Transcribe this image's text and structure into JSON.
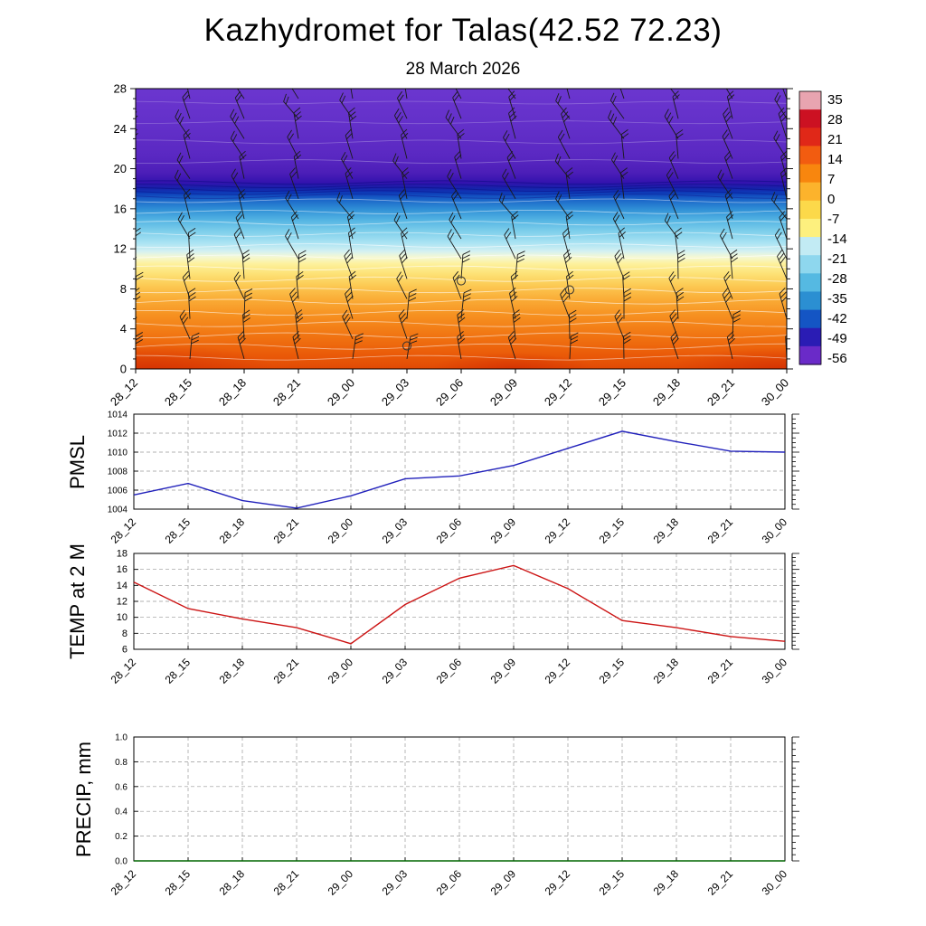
{
  "page": {
    "title": "Kazhydromet for Talas(42.52 72.23)",
    "subtitle": "28 March 2026"
  },
  "times": [
    "28_12",
    "28_15",
    "28_18",
    "28_21",
    "29_00",
    "29_03",
    "29_06",
    "29_09",
    "29_12",
    "29_15",
    "29_18",
    "29_21",
    "30_00"
  ],
  "chart_data": [
    {
      "id": "temperature_height_section",
      "type": "heatmap",
      "description": "Vertical temperature cross-section with wind barbs",
      "x_categories": [
        "28_12",
        "28_15",
        "28_18",
        "28_21",
        "29_00",
        "29_03",
        "29_06",
        "29_09",
        "29_12",
        "29_15",
        "29_18",
        "29_21",
        "30_00"
      ],
      "ylim": [
        0,
        28
      ],
      "y_ticks": [
        0,
        4,
        8,
        12,
        16,
        20,
        24,
        28
      ],
      "colorbar": {
        "labels": [
          35,
          28,
          21,
          14,
          7,
          0,
          -7,
          -14,
          -21,
          -28,
          -35,
          -42,
          -49,
          -56
        ],
        "colors": [
          "#e8a4b0",
          "#cc1122",
          "#e02818",
          "#f25c10",
          "#f8860e",
          "#fcb32c",
          "#fcd94a",
          "#fdf07e",
          "#c2ebf4",
          "#8ed7ee",
          "#55b9e2",
          "#2b8fd2",
          "#1455c4",
          "#2a1cb4",
          "#6a2ac8"
        ]
      },
      "gradient_stops": [
        {
          "f": 0.0,
          "c": "#6b36cf"
        },
        {
          "f": 0.13,
          "c": "#6330c9"
        },
        {
          "f": 0.24,
          "c": "#5a28c2"
        },
        {
          "f": 0.3,
          "c": "#4c1eb8"
        },
        {
          "f": 0.335,
          "c": "#3313ae"
        },
        {
          "f": 0.355,
          "c": "#1722aa"
        },
        {
          "f": 0.372,
          "c": "#0d3cb8"
        },
        {
          "f": 0.395,
          "c": "#1a64c8"
        },
        {
          "f": 0.43,
          "c": "#2f8fd6"
        },
        {
          "f": 0.47,
          "c": "#55b5e3"
        },
        {
          "f": 0.51,
          "c": "#7fcfeb"
        },
        {
          "f": 0.55,
          "c": "#aae3f3"
        },
        {
          "f": 0.58,
          "c": "#d3f0f2"
        },
        {
          "f": 0.6,
          "c": "#f4f8d4"
        },
        {
          "f": 0.625,
          "c": "#fdf19c"
        },
        {
          "f": 0.66,
          "c": "#fde276"
        },
        {
          "f": 0.7,
          "c": "#fccb55"
        },
        {
          "f": 0.75,
          "c": "#faad37"
        },
        {
          "f": 0.81,
          "c": "#f69020"
        },
        {
          "f": 0.88,
          "c": "#f17512"
        },
        {
          "f": 0.95,
          "c": "#ea5a08"
        },
        {
          "f": 1.0,
          "c": "#e14a05"
        }
      ],
      "contours": [
        {
          "f": 0.05,
          "c": "rgba(255,255,255,0.25)",
          "w": 0.8,
          "a": 1.5
        },
        {
          "f": 0.12,
          "c": "rgba(255,255,255,0.25)",
          "w": 0.8,
          "a": 1.5
        },
        {
          "f": 0.19,
          "c": "rgba(255,255,255,0.28)",
          "w": 0.8,
          "a": 2
        },
        {
          "f": 0.26,
          "c": "rgba(255,255,255,0.30)",
          "w": 0.8,
          "a": 2
        },
        {
          "f": 0.335,
          "c": "rgba(10,10,130,0.55)",
          "w": 1,
          "a": 2
        },
        {
          "f": 0.347,
          "c": "rgba(10,10,130,0.50)",
          "w": 1,
          "a": 2
        },
        {
          "f": 0.359,
          "c": "rgba(10,10,130,0.50)",
          "w": 1,
          "a": 2.2
        },
        {
          "f": 0.371,
          "c": "rgba(10,10,130,0.45)",
          "w": 1,
          "a": 2.2
        },
        {
          "f": 0.384,
          "c": "rgba(15,20,140,0.40)",
          "w": 1,
          "a": 2.4
        },
        {
          "f": 0.4,
          "c": "rgba(255,255,255,0.50)",
          "w": 0.8,
          "a": 2
        },
        {
          "f": 0.44,
          "c": "rgba(255,255,255,0.55)",
          "w": 0.8,
          "a": 2
        },
        {
          "f": 0.48,
          "c": "rgba(255,255,255,0.60)",
          "w": 0.8,
          "a": 2.2
        },
        {
          "f": 0.52,
          "c": "rgba(255,255,255,0.60)",
          "w": 0.8,
          "a": 2.2
        },
        {
          "f": 0.56,
          "c": "rgba(255,255,255,0.65)",
          "w": 0.8,
          "a": 2
        },
        {
          "f": 0.6,
          "c": "rgba(255,255,255,0.70)",
          "w": 0.8,
          "a": 2
        },
        {
          "f": 0.64,
          "c": "rgba(255,255,255,0.70)",
          "w": 0.8,
          "a": 2.3
        },
        {
          "f": 0.68,
          "c": "rgba(255,255,255,0.68)",
          "w": 0.8,
          "a": 2.5
        },
        {
          "f": 0.72,
          "c": "rgba(255,255,255,0.66)",
          "w": 0.8,
          "a": 2.5
        },
        {
          "f": 0.76,
          "c": "rgba(255,255,255,0.64)",
          "w": 0.8,
          "a": 2.6
        },
        {
          "f": 0.8,
          "c": "rgba(255,255,255,0.62)",
          "w": 0.8,
          "a": 2.6
        },
        {
          "f": 0.84,
          "c": "rgba(255,255,255,0.60)",
          "w": 0.8,
          "a": 2.8
        },
        {
          "f": 0.88,
          "c": "rgba(255,255,255,0.60)",
          "w": 0.8,
          "a": 2.8
        },
        {
          "f": 0.92,
          "c": "rgba(255,255,255,0.58)",
          "w": 0.8,
          "a": 3
        },
        {
          "f": 0.96,
          "c": "rgba(255,255,255,0.55)",
          "w": 0.8,
          "a": 2.5
        }
      ],
      "hot_spots": [
        {
          "x": 0.02,
          "rx": 140,
          "ry": 28
        },
        {
          "x": 0.58,
          "rx": 90,
          "ry": 18
        },
        {
          "x": 0.99,
          "rx": 120,
          "ry": 24
        }
      ],
      "wind_barbs": {
        "heights": [
          1,
          3,
          5,
          7,
          9,
          11,
          13,
          15,
          17,
          19,
          21,
          23,
          25,
          27
        ],
        "base_angles": [
          -6,
          -12,
          -9,
          -14,
          -10,
          -18,
          -24,
          -28,
          -22,
          -26,
          -20,
          -24,
          -28,
          -24
        ],
        "jitter": [
          6,
          -10,
          14,
          -4,
          9,
          -13,
          3,
          11,
          -8,
          15,
          -12,
          5,
          -7
        ],
        "ticks": [
          3,
          3,
          3,
          2,
          3,
          2,
          2,
          2,
          2,
          2,
          2,
          3,
          2,
          2
        ]
      },
      "markers": [
        {
          "t": 6,
          "h": 8.8
        },
        {
          "t": 8,
          "h": 7.9
        },
        {
          "t": 5,
          "h": 2.3
        }
      ]
    },
    {
      "id": "pmsl",
      "type": "line",
      "label": "PMSL",
      "color": "#2121bb",
      "x": [
        "28_12",
        "28_15",
        "28_18",
        "28_21",
        "29_00",
        "29_03",
        "29_06",
        "29_09",
        "29_12",
        "29_15",
        "29_18",
        "29_21",
        "30_00"
      ],
      "values": [
        1005.5,
        1006.7,
        1004.9,
        1004.1,
        1005.4,
        1007.2,
        1007.5,
        1008.6,
        1010.4,
        1012.2,
        1011.1,
        1010.1,
        1010.0
      ],
      "ylim": [
        1004,
        1014
      ],
      "ytick_step": 2
    },
    {
      "id": "temp_2m",
      "type": "line",
      "label": "TEMP at 2 M",
      "color": "#cc1414",
      "x": [
        "28_12",
        "28_15",
        "28_18",
        "28_21",
        "29_00",
        "29_03",
        "29_06",
        "29_09",
        "29_12",
        "29_15",
        "29_18",
        "29_21",
        "30_00"
      ],
      "values": [
        14.4,
        11.1,
        9.8,
        8.7,
        6.7,
        11.6,
        14.9,
        16.5,
        13.6,
        9.6,
        8.7,
        7.6,
        7.0
      ],
      "ylim": [
        6,
        18
      ],
      "ytick_step": 2
    },
    {
      "id": "precip",
      "type": "line",
      "label": "PRECIP, mm",
      "color": "#006600",
      "x": [
        "28_12",
        "28_15",
        "28_18",
        "28_21",
        "29_00",
        "29_03",
        "29_06",
        "29_09",
        "29_12",
        "29_15",
        "29_18",
        "29_21",
        "30_00"
      ],
      "values": [
        0,
        0,
        0,
        0,
        0,
        0,
        0,
        0,
        0,
        0,
        0,
        0,
        0
      ],
      "ylim": [
        0,
        1
      ],
      "ytick_step": 0.2,
      "ytick_decimals": 1
    }
  ]
}
